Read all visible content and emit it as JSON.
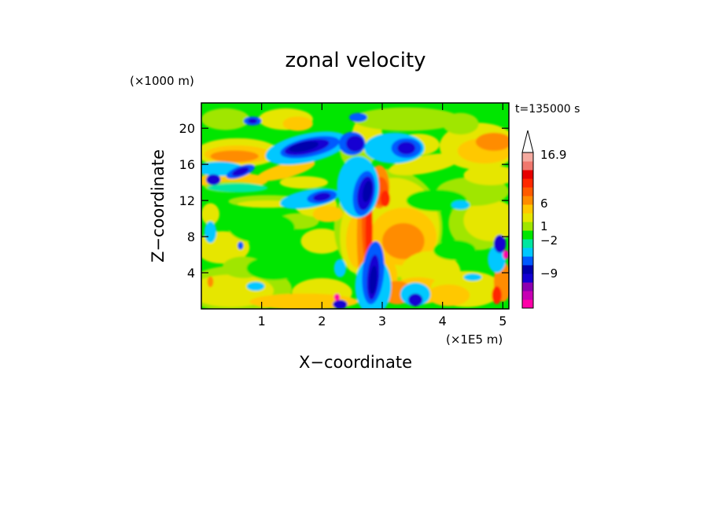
{
  "chart_data": {
    "type": "heatmap",
    "title": "zonal velocity",
    "xlabel": "X−coordinate",
    "ylabel": "Z−coordinate",
    "x_unit": "(×1E5 m)",
    "y_unit": "(×1000 m)",
    "time_label": "t=135000 s",
    "xlim": [
      0,
      5.1
    ],
    "ylim": [
      0,
      22.8
    ],
    "x_ticks": [
      {
        "value": 1,
        "label": "1"
      },
      {
        "value": 2,
        "label": "2"
      },
      {
        "value": 3,
        "label": "3"
      },
      {
        "value": 4,
        "label": "4"
      },
      {
        "value": 5,
        "label": "5"
      }
    ],
    "y_ticks": [
      {
        "value": 4,
        "label": "4"
      },
      {
        "value": 8,
        "label": "8"
      },
      {
        "value": 12,
        "label": "12"
      },
      {
        "value": 16,
        "label": "16"
      },
      {
        "value": 20,
        "label": "20"
      }
    ],
    "colorbar": {
      "colors": [
        "#ff00a8",
        "#c700b4",
        "#8c00b0",
        "#1400d2",
        "#0000ac",
        "#005aff",
        "#00c8ff",
        "#00e6a0",
        "#00e600",
        "#a0e600",
        "#e6e600",
        "#ffc800",
        "#ff8c00",
        "#ff5a00",
        "#ff2800",
        "#e60000",
        "#f0786e",
        "#f5aaa0"
      ],
      "labels": [
        "16.9",
        "6",
        "1",
        "−2",
        "−9"
      ],
      "extend_max": true
    },
    "field_notes": [
      "strong negative (blue) jets near z=18 at x=1.5–2.3 and x=2.3–3.3",
      "strong negative core near x=2.8–3.0, z=12 and z=0–6",
      "positive (orange/red) band near z=17 at x=0.1–1.2 and x=4.3–5.1",
      "positive (red) tongue along x=2.6–2.9 from z=3 to z=14"
    ]
  }
}
